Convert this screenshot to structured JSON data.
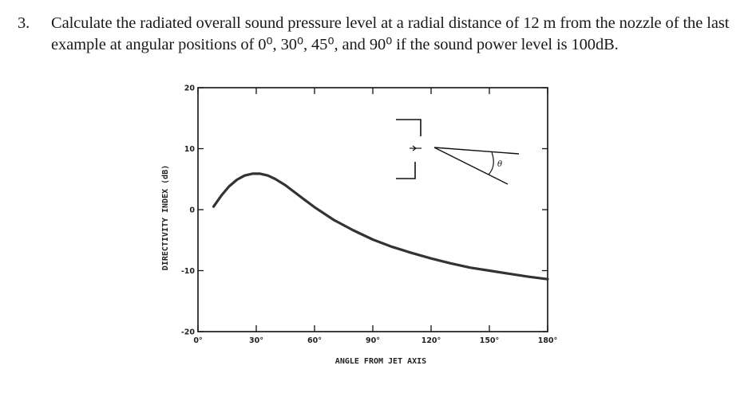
{
  "problem": {
    "number": "3.",
    "text": "Calculate the radiated overall sound pressure level at a radial distance of 12 m from the nozzle of the last example at angular positions of 0⁰, 30⁰, 45⁰, and 90⁰ if the sound power level is 100dB."
  },
  "chart_data": {
    "type": "line",
    "xlabel": "ANGLE FROM JET AXIS",
    "ylabel": "DIRECTIVITY INDEX (dB)",
    "xlim": [
      0,
      180
    ],
    "ylim": [
      -20,
      20
    ],
    "x_ticks": [
      "0°",
      "30°",
      "60°",
      "90°",
      "120°",
      "150°",
      "180°"
    ],
    "y_ticks": [
      "20",
      "10",
      "0",
      "-10",
      "-20"
    ],
    "series": [
      {
        "x": [
          8,
          12,
          16,
          20,
          24,
          28,
          32,
          36,
          40,
          45,
          50,
          55,
          60,
          70,
          80,
          90,
          100,
          110,
          120,
          130,
          140,
          150,
          160,
          170,
          180
        ],
        "y": [
          0.5,
          2.3,
          3.8,
          4.9,
          5.6,
          5.9,
          5.9,
          5.6,
          5.0,
          4.0,
          2.8,
          1.6,
          0.4,
          -1.7,
          -3.4,
          -4.9,
          -6.1,
          -7.1,
          -8.0,
          -8.8,
          -9.5,
          -10.0,
          -10.5,
          -11.0,
          -11.4
        ]
      }
    ],
    "inset_label": "θ",
    "grid": false
  }
}
